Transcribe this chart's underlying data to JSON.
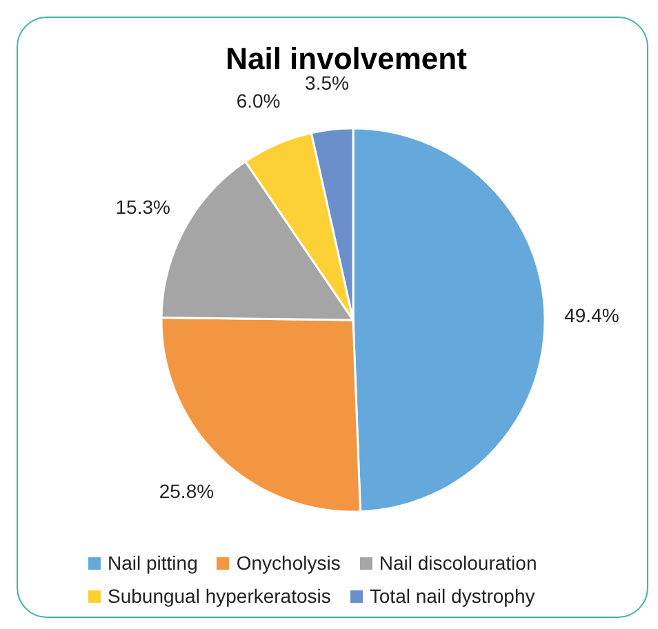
{
  "chart_data": {
    "type": "pie",
    "title": "Nail involvement",
    "categories": [
      "Nail pitting",
      "Onycholysis",
      "Nail discolouration",
      "Subungual hyperkeratosis",
      "Total nail dystrophy"
    ],
    "values": [
      49.4,
      25.8,
      15.3,
      6.0,
      3.5
    ],
    "value_labels": [
      "49.4%",
      "25.8%",
      "15.3%",
      "6.0%",
      "3.5%"
    ],
    "colors": [
      "#65a9dc",
      "#f39642",
      "#a5a5a5",
      "#fdd135",
      "#6a8fcb"
    ],
    "legend": "bottom"
  }
}
